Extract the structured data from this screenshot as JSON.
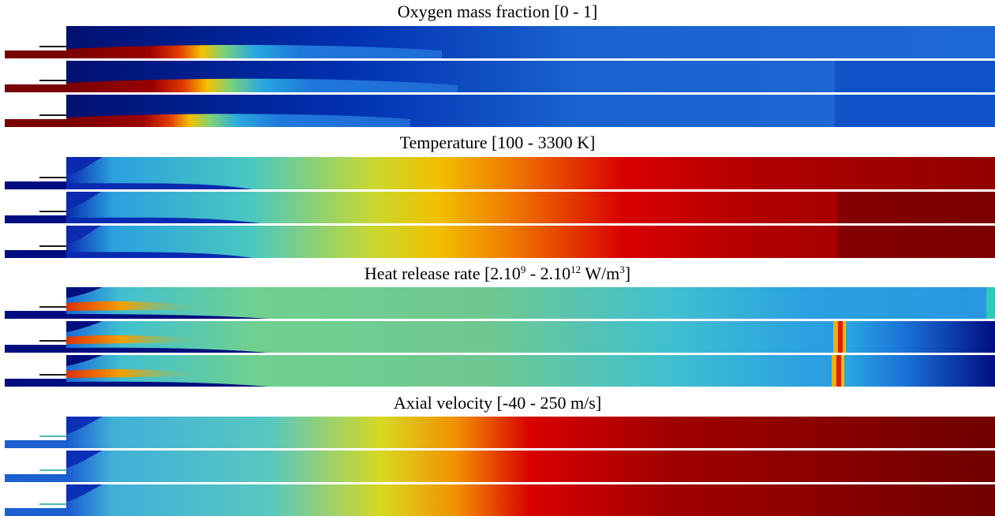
{
  "panels": [
    {
      "id": "oxygen",
      "title": "Oxygen mass fraction [0 - 1]",
      "colormap": "jet",
      "background": "#0033b0",
      "chamber_base": "#1f62d0",
      "inlet_color": "#7a0000",
      "injector_color": "#1a1a1a",
      "rows": 3
    },
    {
      "id": "temperature",
      "title": "Temperature [100 - 3300 K]",
      "colormap": "jet",
      "inlet_color": "#000d80",
      "injector_color": "#1a1a1a",
      "rows": 3
    },
    {
      "id": "heat-release",
      "title_parts": {
        "pre": "Heat release rate [2.10",
        "sup1": "9",
        "mid": " - 2.10",
        "sup2": "12",
        "post": " W/m",
        "sup3": "3",
        "end": "]"
      },
      "colormap": "jet",
      "inlet_color": "#000d80",
      "injector_color": "#1a1a1a",
      "rows": 3
    },
    {
      "id": "axial-velocity",
      "title": "Axial velocity [-40 - 250 m/s]",
      "colormap": "jet",
      "inlet_color": "#1a60d0",
      "injector_color": "#4fb8b0",
      "rows": 3
    }
  ]
}
